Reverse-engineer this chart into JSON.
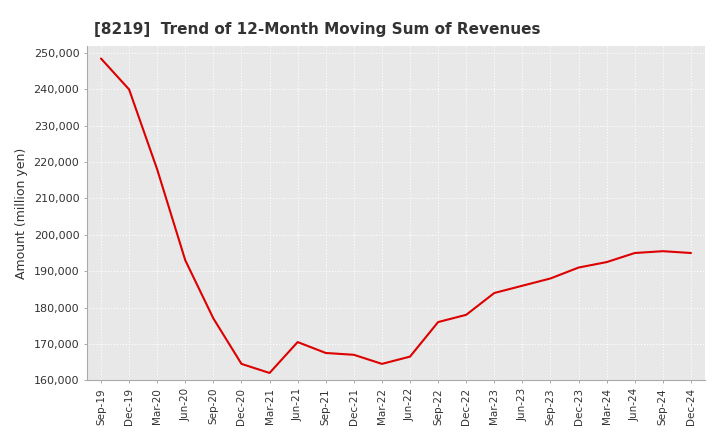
{
  "title": "[8219]  Trend of 12-Month Moving Sum of Revenues",
  "ylabel": "Amount (million yen)",
  "line_color": "#dd0000",
  "background_color": "#ffffff",
  "plot_background_color": "#e8e8e8",
  "grid_color": "#ffffff",
  "ylim": [
    160000,
    252000
  ],
  "yticks": [
    160000,
    170000,
    180000,
    190000,
    200000,
    210000,
    220000,
    230000,
    240000,
    250000
  ],
  "x_labels": [
    "Sep-19",
    "Dec-19",
    "Mar-20",
    "Jun-20",
    "Sep-20",
    "Dec-20",
    "Mar-21",
    "Jun-21",
    "Sep-21",
    "Dec-21",
    "Mar-22",
    "Jun-22",
    "Sep-22",
    "Dec-22",
    "Mar-23",
    "Jun-23",
    "Sep-23",
    "Dec-23",
    "Mar-24",
    "Jun-24",
    "Sep-24",
    "Dec-24"
  ],
  "values": [
    248500,
    240000,
    218000,
    193000,
    177000,
    164500,
    162000,
    170500,
    167500,
    167000,
    164500,
    166500,
    176000,
    178000,
    184000,
    186000,
    188000,
    191000,
    192500,
    195000,
    195500,
    195000
  ]
}
